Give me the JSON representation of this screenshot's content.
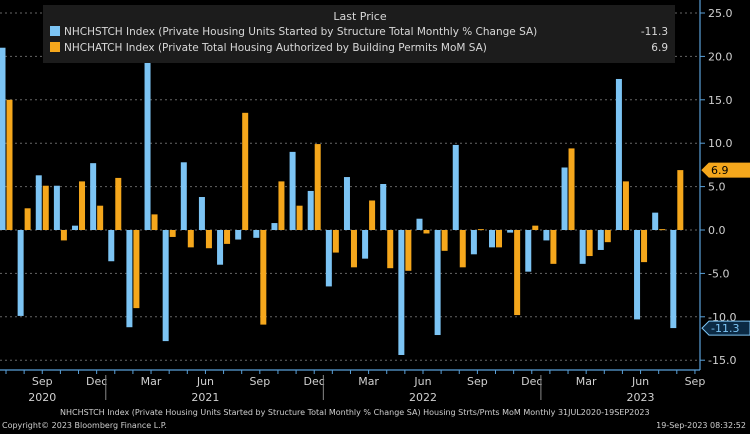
{
  "chart_data": {
    "type": "bar",
    "legend_title": "Last Price",
    "legend_placement": "top",
    "x_start": "2020-07",
    "x_end": "2023-08",
    "x_frequency": "monthly",
    "ylim": [
      -15,
      25
    ],
    "y_ticks": [
      "25.0",
      "20.0",
      "15.0",
      "10.0",
      "5.0",
      "0.0",
      "-5.0",
      "-10.0",
      "-15.0"
    ],
    "y_tick_values": [
      25,
      20,
      15,
      10,
      5,
      0,
      -5,
      -10,
      -15
    ],
    "grid": true,
    "x_month_labels": [
      {
        "label": "Sep",
        "month": "2020-09"
      },
      {
        "label": "Dec",
        "month": "2020-12"
      },
      {
        "label": "Mar",
        "month": "2021-03"
      },
      {
        "label": "Jun",
        "month": "2021-06"
      },
      {
        "label": "Sep",
        "month": "2021-09"
      },
      {
        "label": "Dec",
        "month": "2021-12"
      },
      {
        "label": "Mar",
        "month": "2022-03"
      },
      {
        "label": "Jun",
        "month": "2022-06"
      },
      {
        "label": "Sep",
        "month": "2022-09"
      },
      {
        "label": "Dec",
        "month": "2022-12"
      },
      {
        "label": "Mar",
        "month": "2023-03"
      },
      {
        "label": "Jun",
        "month": "2023-06"
      },
      {
        "label": "Sep",
        "month": "2023-09"
      }
    ],
    "x_year_labels": [
      {
        "label": "2020",
        "month": "2020-09"
      },
      {
        "label": "2021",
        "month": "2021-06"
      },
      {
        "label": "2022",
        "month": "2022-06"
      },
      {
        "label": "2023",
        "month": "2023-06"
      }
    ],
    "series": [
      {
        "name": "NHCHSTCH Index (Private Housing Units Started by Structure Total Monthly % Change SA)",
        "last": "-11.3",
        "color": "#7cc4f4",
        "values": [
          21.0,
          -9.9,
          6.3,
          5.1,
          0.5,
          7.7,
          -3.6,
          -11.2,
          19.5,
          -12.8,
          7.8,
          3.8,
          -4.0,
          -1.1,
          -0.9,
          0.8,
          9.0,
          4.5,
          -6.5,
          6.1,
          -3.3,
          5.3,
          -14.4,
          1.3,
          -12.1,
          9.8,
          -2.8,
          -2.0,
          -0.3,
          -4.8,
          -1.2,
          7.2,
          -3.9,
          -2.3,
          17.4,
          -10.3,
          2.0,
          -11.3
        ]
      },
      {
        "name": "NHCHATCH Index (Private Total Housing Authorized by Building Permits MoM SA)",
        "last": "6.9",
        "color": "#f5a71c",
        "values": [
          15.0,
          2.5,
          5.1,
          -1.2,
          5.6,
          2.8,
          6.0,
          -9.0,
          1.8,
          -0.8,
          -2.0,
          -2.1,
          -1.6,
          13.5,
          -10.9,
          5.6,
          2.8,
          9.9,
          -2.6,
          -4.3,
          3.4,
          -4.4,
          -4.7,
          -0.4,
          -2.4,
          -4.3,
          0.1,
          -2.0,
          -9.8,
          0.5,
          -3.9,
          9.4,
          -3.0,
          -1.4,
          5.6,
          -3.7,
          0.1,
          6.9
        ]
      }
    ]
  },
  "footer": {
    "description": "NHCHSTCH Index (Private Housing Units Started by Structure Total Monthly % Change SA) Housing Strts/Pmts MoM  Monthly 31JUL2020-19SEP2023",
    "copyright": "Copyright© 2023 Bloomberg Finance L.P.",
    "timestamp": "19-Sep-2023 08:32:52"
  }
}
